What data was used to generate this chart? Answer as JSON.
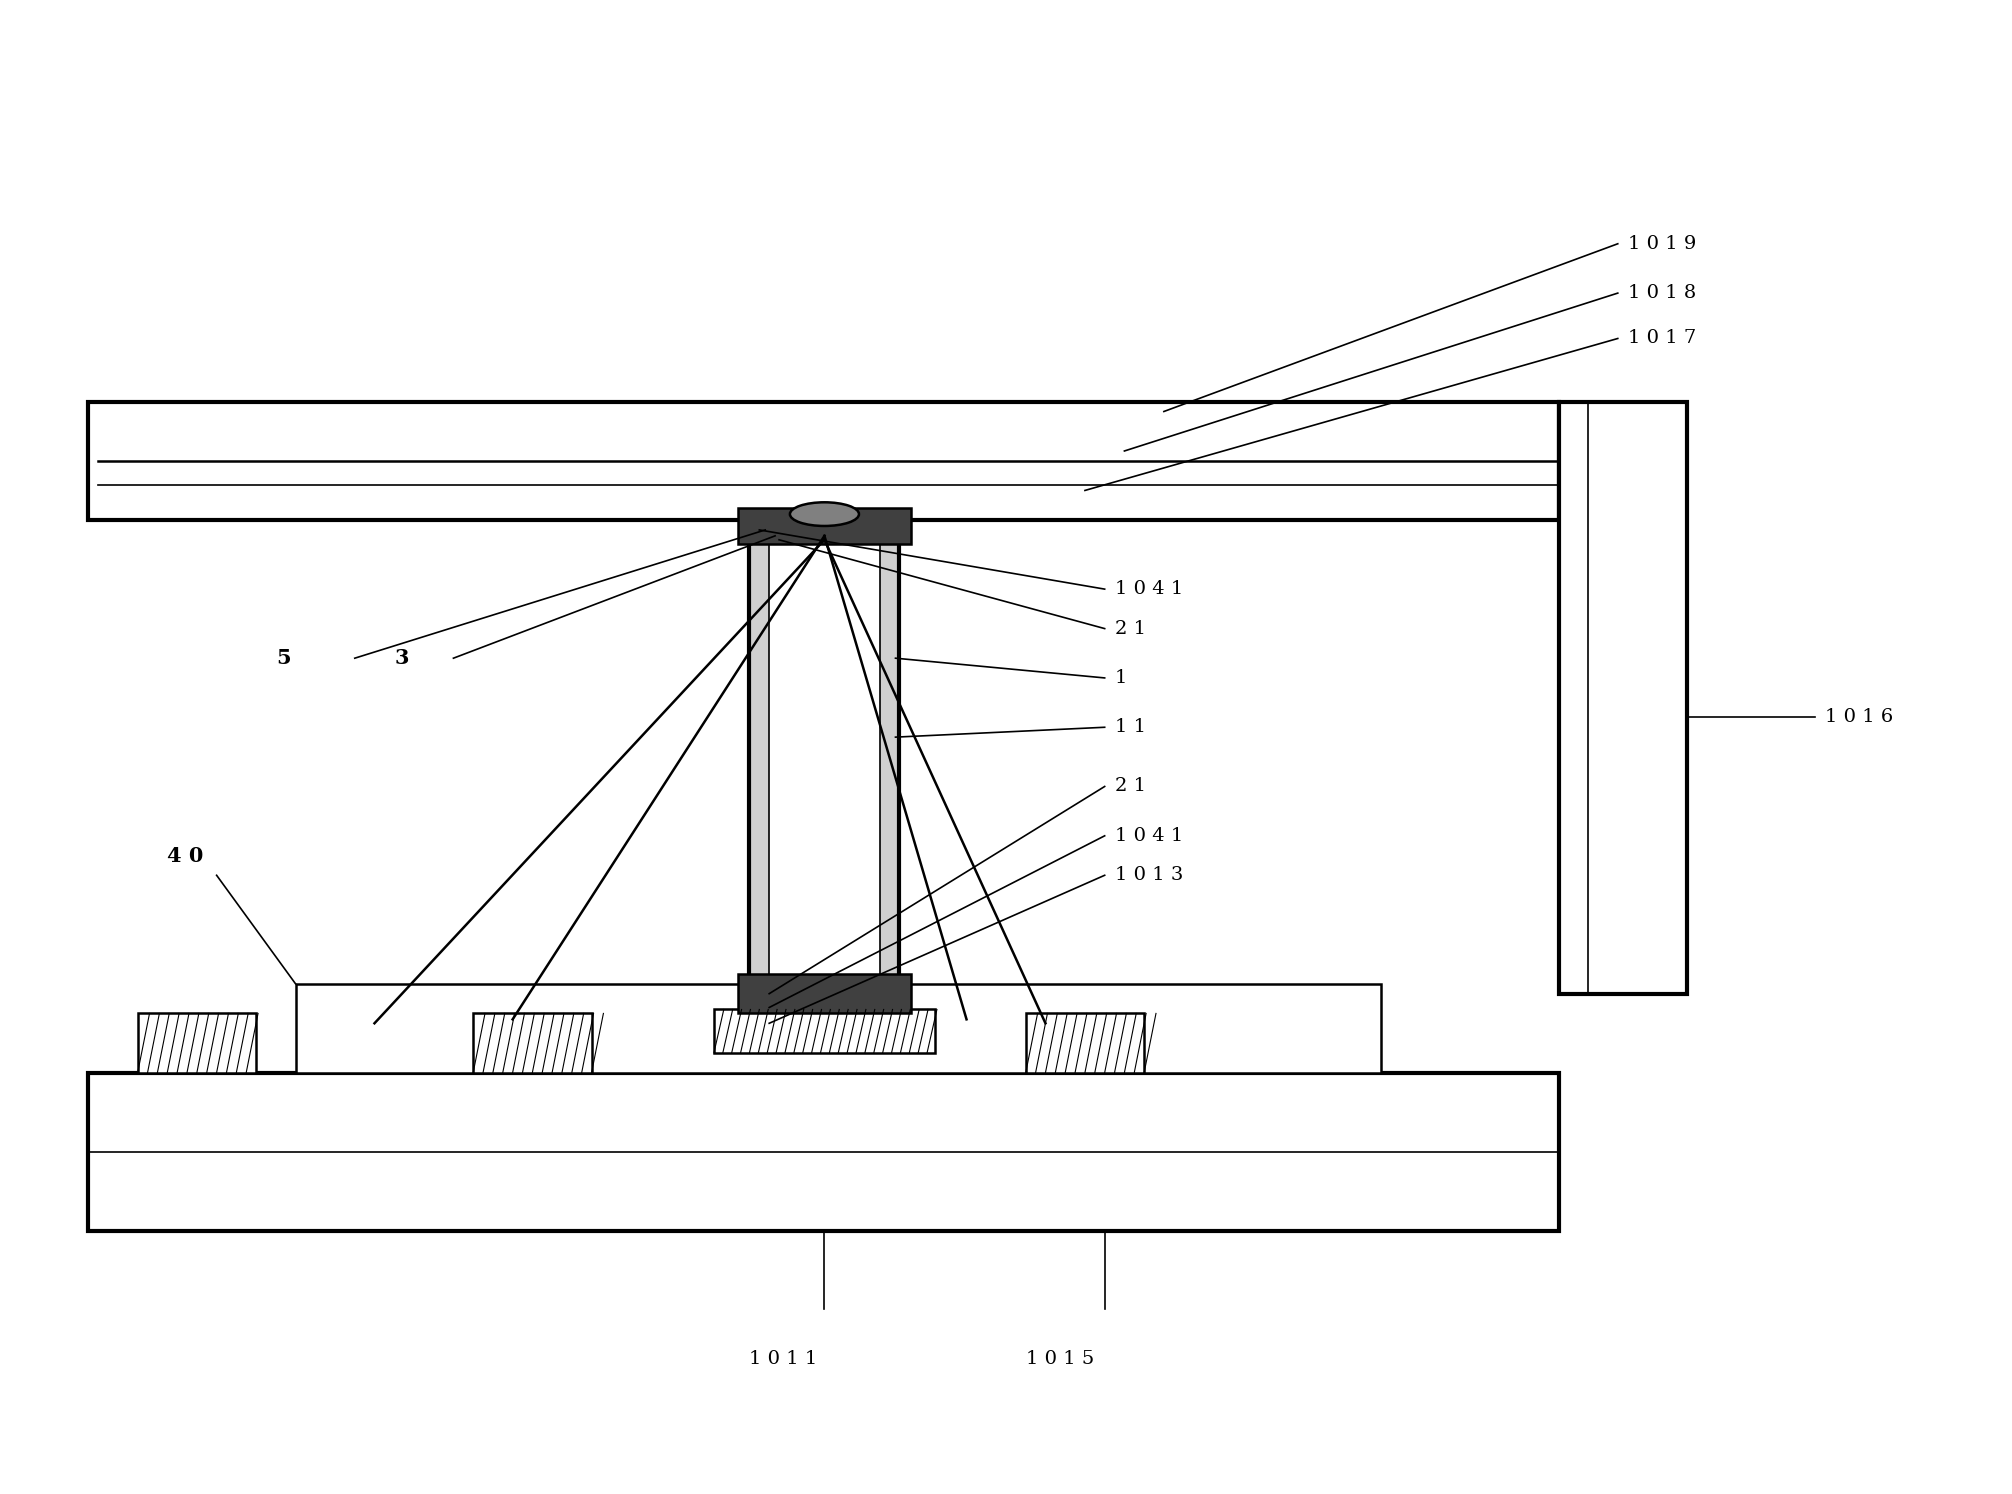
{
  "bg_color": "#ffffff",
  "line_color": "#000000",
  "lw_thin": 1.2,
  "lw_medium": 1.8,
  "lw_thick": 3.0,
  "fig_width": 20.12,
  "fig_height": 14.94,
  "xlim": [
    0,
    10
  ],
  "ylim": [
    0,
    7.5
  ]
}
